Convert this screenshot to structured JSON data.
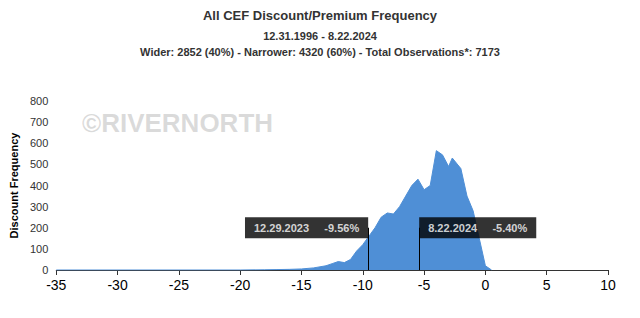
{
  "chart_data": {
    "type": "area",
    "title": "All CEF Discount/Premium Frequency",
    "subtitle": [
      "12.31.1996 - 8.22.2024",
      "Wider: 2852 (40%) - Narrower: 4320 (60%) - Total Observations*: 7173"
    ],
    "watermark": "©RIVERNORTH",
    "y_label": "Discount Frequency",
    "x": [
      -35,
      -20,
      -18,
      -17,
      -16,
      -15,
      -14,
      -13,
      -12.5,
      -12,
      -11.5,
      -11,
      -10.5,
      -10,
      -9.5,
      -9,
      -8.5,
      -8,
      -7.5,
      -7,
      -6.5,
      -6,
      -5.5,
      -5,
      -4.5,
      -4,
      -3.5,
      -3,
      -2.7,
      -2,
      -1.5,
      -1,
      -0.5,
      0,
      0.5
    ],
    "values": [
      0,
      0,
      1,
      2,
      3,
      5,
      10,
      20,
      30,
      40,
      35,
      50,
      90,
      120,
      160,
      200,
      250,
      270,
      265,
      300,
      350,
      400,
      430,
      380,
      400,
      565,
      545,
      490,
      530,
      480,
      350,
      280,
      150,
      20,
      0
    ],
    "color": "#4f8fd6",
    "xlim": [
      -35,
      10
    ],
    "xticks": [
      -35,
      -30,
      -25,
      -20,
      -15,
      -10,
      -5,
      0,
      5,
      10
    ],
    "ylim": [
      0,
      800
    ],
    "yticks": [
      0,
      100,
      200,
      300,
      400,
      500,
      600,
      700,
      800
    ],
    "grid": false,
    "annotations": [
      {
        "x": -9.56,
        "date": "12.29.2023",
        "label": "-9.56%"
      },
      {
        "x": -5.4,
        "date": "8.22.2024",
        "label": "-5.40%"
      }
    ]
  }
}
